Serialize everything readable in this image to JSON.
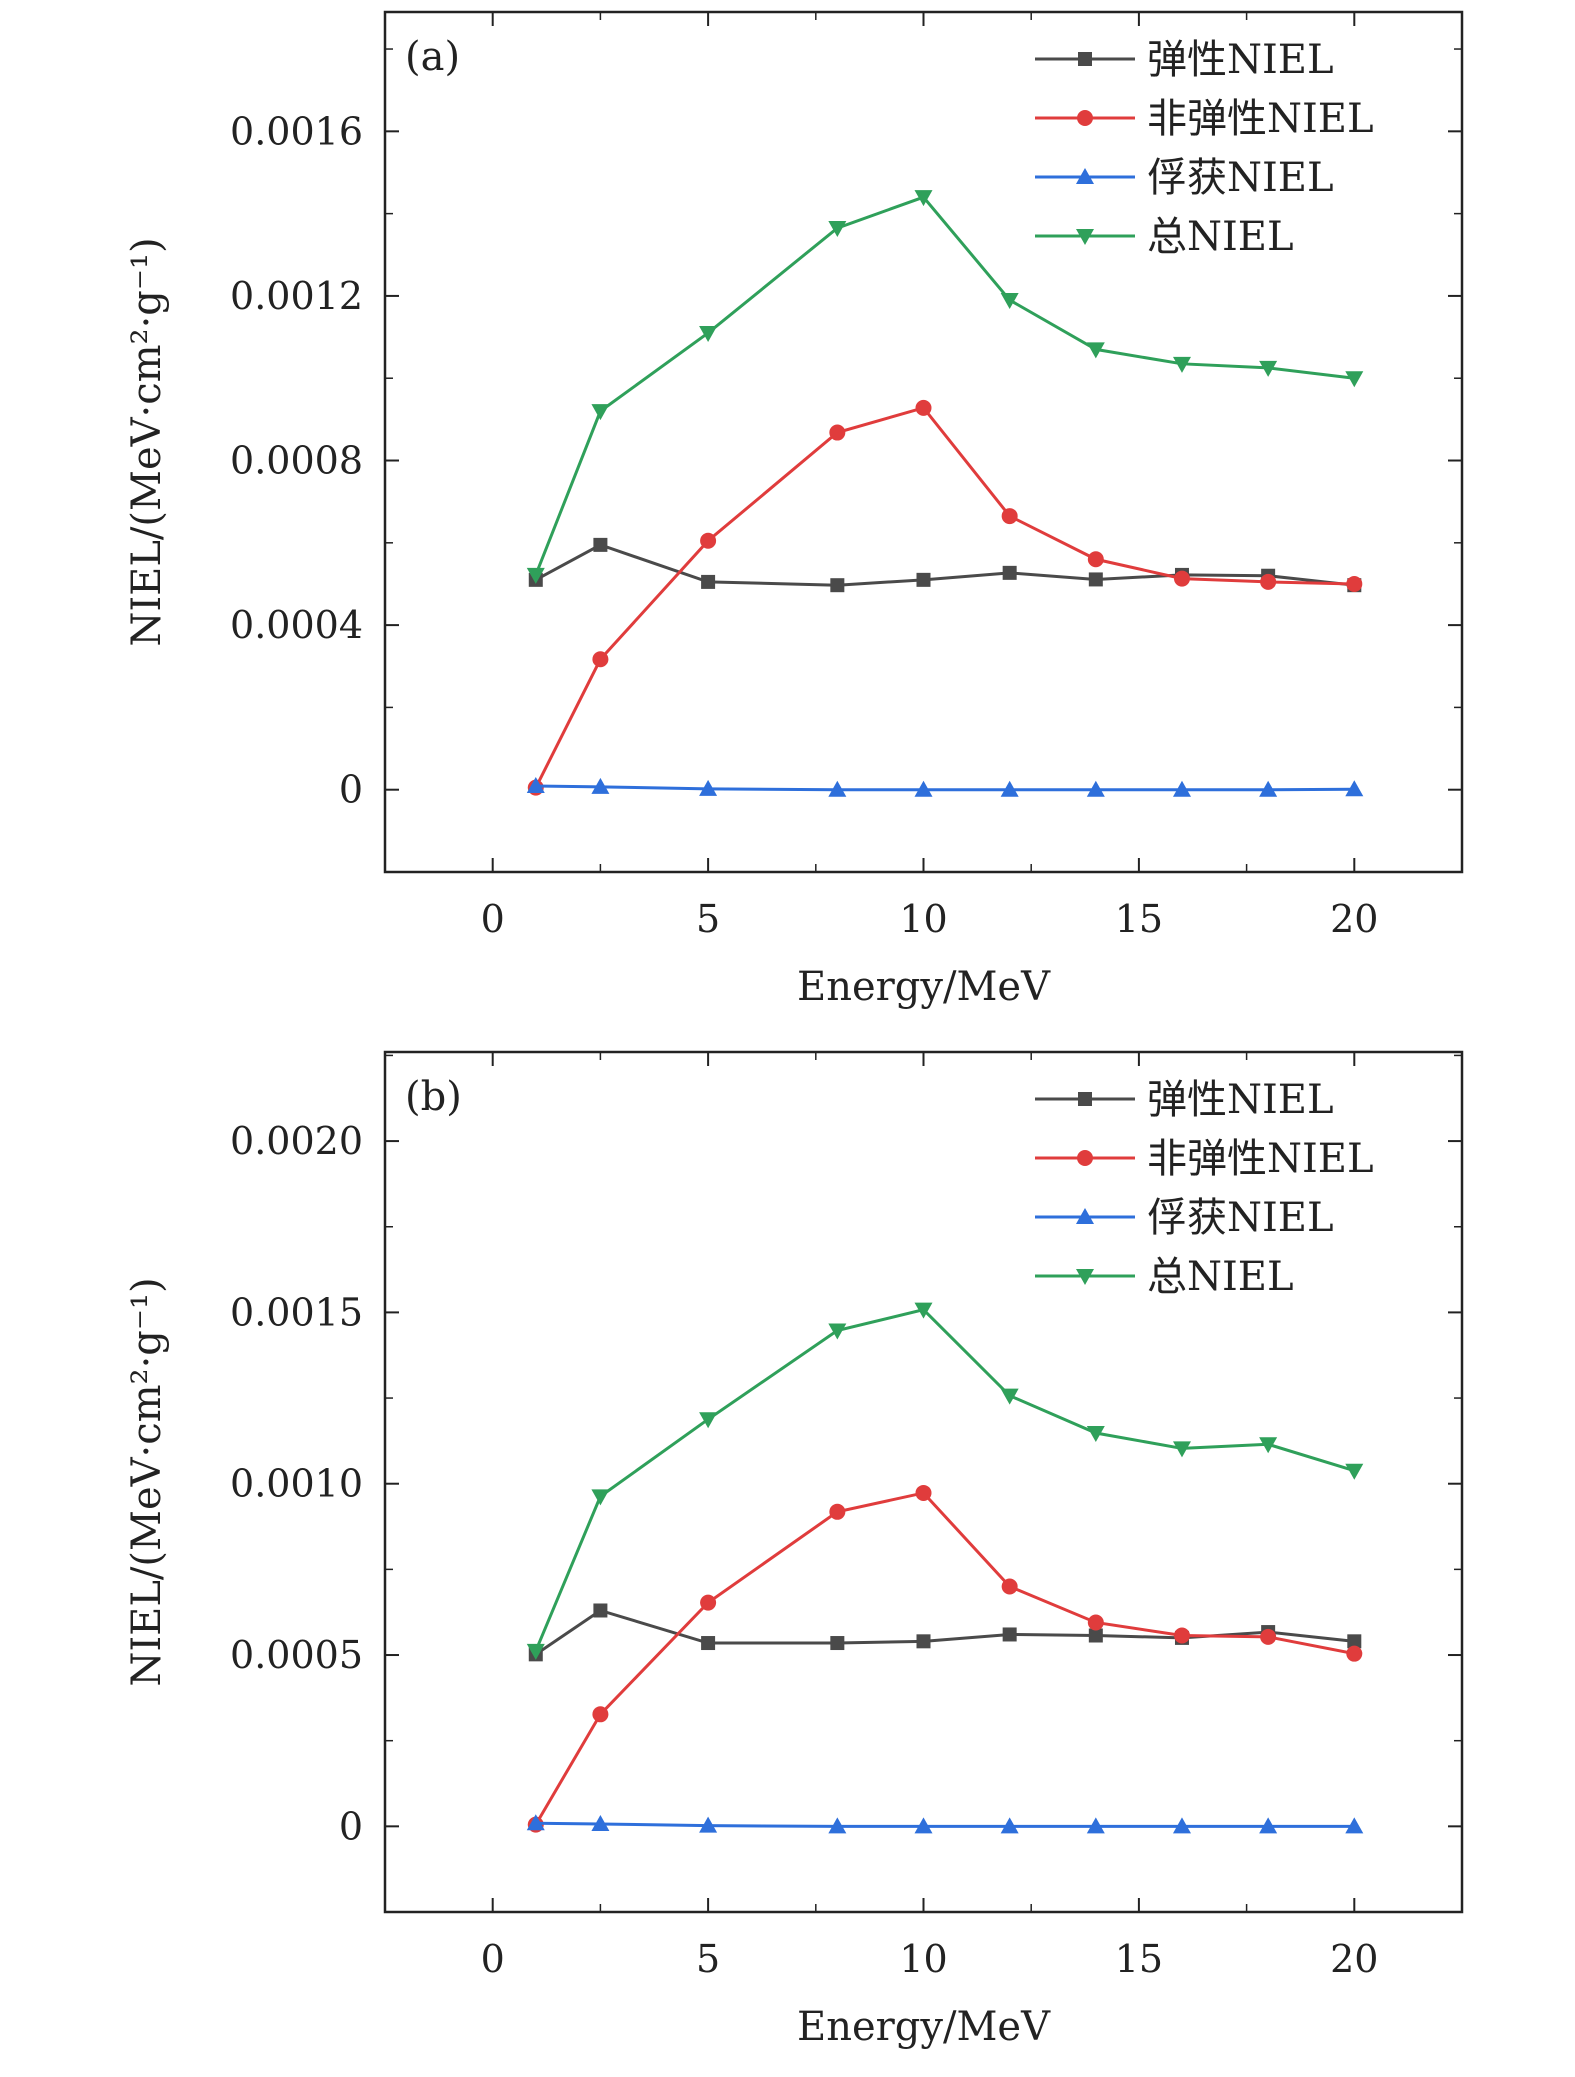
{
  "chart_data": [
    {
      "type": "line",
      "panel_label": "(a)",
      "xlabel": "Energy/MeV",
      "ylabel": "NIEL/(MeV·cm²·g⁻¹)",
      "xlim": [
        -2.5,
        22.5
      ],
      "ylim": [
        -0.0002,
        0.00189
      ],
      "xticks": [
        0,
        5,
        10,
        15,
        20
      ],
      "xtick_labels": [
        "0",
        "5",
        "10",
        "15",
        "20"
      ],
      "yticks": [
        0,
        0.0004,
        0.0008,
        0.0012,
        0.0016
      ],
      "ytick_labels": [
        "0",
        "0.0004",
        "0.0008",
        "0.0012",
        "0.0016"
      ],
      "legend_position": "top-right",
      "grid": false,
      "x": [
        1,
        2.5,
        5,
        8,
        10,
        12,
        14,
        16,
        18,
        20
      ],
      "series": [
        {
          "name": "弹性NIEL",
          "color": "#4a4a4a",
          "marker": "square",
          "values": [
            0.00051,
            0.000595,
            0.000505,
            0.000497,
            0.00051,
            0.000527,
            0.000511,
            0.000522,
            0.00052,
            0.000497
          ]
        },
        {
          "name": "非弹性NIEL",
          "color": "#e03c3c",
          "marker": "circle",
          "values": [
            5e-06,
            0.000317,
            0.000605,
            0.000868,
            0.000928,
            0.000665,
            0.00056,
            0.000513,
            0.000505,
            0.0005
          ]
        },
        {
          "name": "俘获NIEL",
          "color": "#2e6fdb",
          "marker": "triangle-up",
          "values": [
            9e-06,
            7e-06,
            2e-06,
            0.0,
            0.0,
            0.0,
            0.0,
            0.0,
            0.0,
            1e-06
          ]
        },
        {
          "name": "总NIEL",
          "color": "#2fa05a",
          "marker": "triangle-down",
          "values": [
            0.000522,
            0.00092,
            0.00111,
            0.001365,
            0.00144,
            0.00119,
            0.00107,
            0.001035,
            0.001025,
            0.001
          ]
        }
      ]
    },
    {
      "type": "line",
      "panel_label": "(b)",
      "xlabel": "Energy/MeV",
      "ylabel": "NIEL/(MeV·cm²·g⁻¹)",
      "xlim": [
        -2.5,
        22.5
      ],
      "ylim": [
        -0.00025,
        0.00226
      ],
      "xticks": [
        0,
        5,
        10,
        15,
        20
      ],
      "xtick_labels": [
        "0",
        "5",
        "10",
        "15",
        "20"
      ],
      "yticks": [
        0,
        0.0005,
        0.001,
        0.0015,
        0.002
      ],
      "ytick_labels": [
        "0",
        "0.0005",
        "0.0010",
        "0.0015",
        "0.0020"
      ],
      "legend_position": "top-right",
      "grid": false,
      "x": [
        1,
        2.5,
        5,
        8,
        10,
        12,
        14,
        16,
        18,
        20
      ],
      "series": [
        {
          "name": "弹性NIEL",
          "color": "#4a4a4a",
          "marker": "square",
          "values": [
            0.000502,
            0.00063,
            0.000535,
            0.000535,
            0.00054,
            0.00056,
            0.000557,
            0.00055,
            0.000567,
            0.00054
          ]
        },
        {
          "name": "非弹性NIEL",
          "color": "#e03c3c",
          "marker": "circle",
          "values": [
            5e-06,
            0.000327,
            0.000653,
            0.000918,
            0.000973,
            0.0007,
            0.000595,
            0.000557,
            0.000553,
            0.000504
          ]
        },
        {
          "name": "俘获NIEL",
          "color": "#2e6fdb",
          "marker": "triangle-up",
          "values": [
            9e-06,
            7e-06,
            2e-06,
            0.0,
            0.0,
            0.0,
            0.0,
            0.0,
            0.0,
            0.0
          ]
        },
        {
          "name": "总NIEL",
          "color": "#2fa05a",
          "marker": "triangle-down",
          "values": [
            0.000512,
            0.000963,
            0.001188,
            0.001447,
            0.001508,
            0.001257,
            0.001148,
            0.001103,
            0.001115,
            0.001038
          ]
        }
      ]
    }
  ]
}
